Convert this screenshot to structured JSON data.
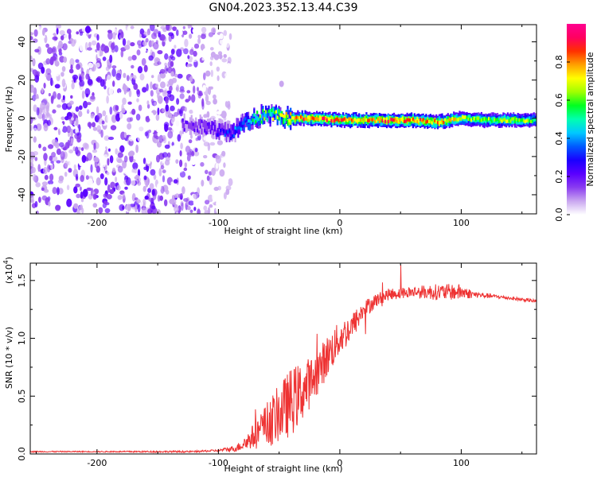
{
  "title": "GN04.2023.352.13.44.C39",
  "chart_data": [
    {
      "type": "heatmap",
      "xlabel": "Height of straight line (km)",
      "ylabel": "Frequency (Hz)",
      "xlim": [
        -255,
        162
      ],
      "ylim": [
        -50,
        49
      ],
      "xticks": [
        -200,
        -100,
        0,
        100
      ],
      "yticks": [
        -40,
        -20,
        0,
        20,
        40
      ],
      "colorbar": {
        "label": "Normalized spectral amplitude",
        "ticks": [
          "0.0",
          "0.2",
          "0.4",
          "0.6",
          "0.8"
        ],
        "range": [
          0,
          1
        ],
        "colors": [
          "#ffffff",
          "#c9a6f0",
          "#8a3cf0",
          "#5a00ff",
          "#1a00ff",
          "#005aff",
          "#00c8ff",
          "#00ffb0",
          "#00ff20",
          "#a0ff00",
          "#ffff00",
          "#ffa000",
          "#ff3000",
          "#ff0060",
          "#ff0090"
        ]
      },
      "ridge": [
        {
          "x": -255,
          "y": 0,
          "amp": 0.15
        },
        {
          "x": -130,
          "y": -3,
          "amp": 0.2
        },
        {
          "x": -110,
          "y": -5,
          "amp": 0.25
        },
        {
          "x": -100,
          "y": -6,
          "amp": 0.3
        },
        {
          "x": -90,
          "y": -8,
          "amp": 0.35
        },
        {
          "x": -80,
          "y": -3,
          "amp": 0.45
        },
        {
          "x": -70,
          "y": 0,
          "amp": 0.55
        },
        {
          "x": -60,
          "y": 2,
          "amp": 0.6
        },
        {
          "x": -50,
          "y": 1,
          "amp": 0.7
        },
        {
          "x": -40,
          "y": 0,
          "amp": 0.8
        },
        {
          "x": -20,
          "y": 0,
          "amp": 0.85
        },
        {
          "x": 0,
          "y": -1,
          "amp": 0.85
        },
        {
          "x": 20,
          "y": -1,
          "amp": 0.8
        },
        {
          "x": 40,
          "y": -1,
          "amp": 0.85
        },
        {
          "x": 60,
          "y": -1,
          "amp": 0.85
        },
        {
          "x": 80,
          "y": -2,
          "amp": 0.8
        },
        {
          "x": 100,
          "y": 0,
          "amp": 0.7
        },
        {
          "x": 120,
          "y": -1,
          "amp": 0.65
        },
        {
          "x": 140,
          "y": -1,
          "amp": 0.7
        },
        {
          "x": 162,
          "y": -1,
          "amp": 0.6
        }
      ],
      "noise_region": {
        "x_start": -255,
        "x_end": -100,
        "amp_max": 0.25
      }
    },
    {
      "type": "line",
      "xlabel": "Height of straight line (km)",
      "ylabel": "SNR (10 * v/v)",
      "exponent_label": "(x10",
      "exponent_power": "4",
      "exponent_close": ")",
      "xlim": [
        -255,
        162
      ],
      "ylim": [
        0,
        1.65
      ],
      "xticks": [
        -200,
        -100,
        0,
        100
      ],
      "yticks": [
        "0.0",
        "0.5",
        "1.0",
        "1.5"
      ],
      "ytick_values": [
        0,
        0.5,
        1.0,
        1.5
      ],
      "line_color": "#ee3333",
      "envelope": [
        {
          "x": -255,
          "mean": 0.02,
          "noise": 0.005
        },
        {
          "x": -200,
          "mean": 0.02,
          "noise": 0.005
        },
        {
          "x": -120,
          "mean": 0.02,
          "noise": 0.008
        },
        {
          "x": -100,
          "mean": 0.03,
          "noise": 0.01
        },
        {
          "x": -85,
          "mean": 0.05,
          "noise": 0.03
        },
        {
          "x": -75,
          "mean": 0.12,
          "noise": 0.08
        },
        {
          "x": -60,
          "mean": 0.25,
          "noise": 0.2
        },
        {
          "x": -50,
          "mean": 0.35,
          "noise": 0.25
        },
        {
          "x": -40,
          "mean": 0.45,
          "noise": 0.3
        },
        {
          "x": -30,
          "mean": 0.55,
          "noise": 0.25
        },
        {
          "x": -20,
          "mean": 0.68,
          "noise": 0.2
        },
        {
          "x": -10,
          "mean": 0.85,
          "noise": 0.18
        },
        {
          "x": 0,
          "mean": 1.0,
          "noise": 0.15
        },
        {
          "x": 10,
          "mean": 1.1,
          "noise": 0.12
        },
        {
          "x": 20,
          "mean": 1.25,
          "noise": 0.08
        },
        {
          "x": 30,
          "mean": 1.33,
          "noise": 0.06
        },
        {
          "x": 40,
          "mean": 1.38,
          "noise": 0.05
        },
        {
          "x": 60,
          "mean": 1.4,
          "noise": 0.05
        },
        {
          "x": 80,
          "mean": 1.4,
          "noise": 0.07
        },
        {
          "x": 100,
          "mean": 1.4,
          "noise": 0.07
        },
        {
          "x": 110,
          "mean": 1.38,
          "noise": 0.03
        },
        {
          "x": 130,
          "mean": 1.36,
          "noise": 0.015
        },
        {
          "x": 162,
          "mean": 1.32,
          "noise": 0.015
        }
      ]
    }
  ]
}
